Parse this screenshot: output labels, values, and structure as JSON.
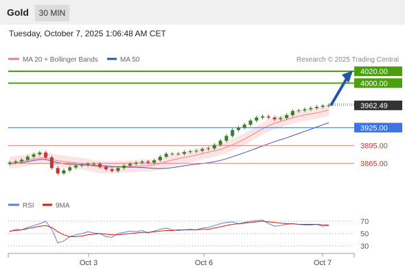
{
  "header": {
    "title": "Gold",
    "timeframe": "30 MIN"
  },
  "timestamp": "Tuesday, October 7, 2025 1:06:48 AM CET",
  "legend": {
    "ma20": "MA 20 + Bollinger Bands",
    "ma50": "MA 50",
    "research": "Research © 2025 Trading Central",
    "rsi": "RSI",
    "ma9": "9MA"
  },
  "colors": {
    "target_green": "#4aa011",
    "pivot_blue": "#3d74e0",
    "support_red": "#f08080",
    "support_text": "#c0392b",
    "price_box": "#333333",
    "arrow": "#2456a4",
    "candle_up": "#3a7d2a",
    "candle_down": "#c0392b",
    "band_fill": "#fde0e0",
    "ma20": "#f08080",
    "ma50": "#3f51b5",
    "rsi": "#5b7fd6",
    "rsi_ma": "#d11a1a"
  },
  "chart_data": [
    {
      "type": "candlestick",
      "x_tick_labels": [
        "Oct 3",
        "Oct 6",
        "Oct 7"
      ],
      "y_range": [
        3840,
        4030
      ],
      "levels": [
        {
          "label": "4020.00",
          "value": 4020.0,
          "kind": "resistance"
        },
        {
          "label": "4000.00",
          "value": 4000.0,
          "kind": "resistance"
        },
        {
          "label": "3962.49",
          "value": 3962.49,
          "kind": "last-price"
        },
        {
          "label": "3925.00",
          "value": 3925.0,
          "kind": "pivot"
        },
        {
          "label": "3895.00",
          "value": 3895.0,
          "kind": "support"
        },
        {
          "label": "3865.00",
          "value": 3865.0,
          "kind": "support"
        }
      ],
      "series": [
        {
          "name": "MA 20 + Bollinger Bands"
        },
        {
          "name": "MA 50"
        }
      ],
      "approx_close": [
        3866,
        3868,
        3871,
        3876,
        3880,
        3883,
        3875,
        3857,
        3848,
        3853,
        3858,
        3861,
        3862,
        3864,
        3864,
        3859,
        3855,
        3852,
        3857,
        3861,
        3864,
        3866,
        3868,
        3866,
        3870,
        3876,
        3881,
        3881,
        3881,
        3884,
        3885,
        3886,
        3889,
        3890,
        3896,
        3903,
        3911,
        3921,
        3925,
        3930,
        3937,
        3942,
        3944,
        3942,
        3939,
        3941,
        3946,
        3953,
        3954,
        3956,
        3958,
        3960,
        3962,
        3962.49
      ],
      "projection": {
        "to": 4020.0
      }
    },
    {
      "type": "line",
      "series": [
        {
          "name": "RSI"
        },
        {
          "name": "9MA"
        }
      ],
      "y_ticks": [
        70,
        50,
        30
      ],
      "y_range": [
        20,
        80
      ],
      "rsi_values": [
        53,
        57,
        56,
        60,
        63,
        66,
        70,
        57,
        35,
        38,
        45,
        48,
        50,
        53,
        51,
        50,
        45,
        44,
        50,
        52,
        54,
        53,
        55,
        51,
        54,
        57,
        59,
        56,
        55,
        56,
        57,
        56,
        59,
        60,
        63,
        66,
        68,
        69,
        66,
        68,
        70,
        71,
        72,
        66,
        62,
        63,
        65,
        66,
        65,
        64,
        64,
        65,
        62,
        63
      ],
      "rsi_ma_values": [
        54,
        55,
        56,
        58,
        60,
        62,
        63,
        60,
        53,
        48,
        45,
        45,
        46,
        48,
        49,
        50,
        49,
        48,
        48,
        49,
        50,
        51,
        52,
        52,
        53,
        54,
        55,
        55,
        56,
        56,
        56,
        56,
        57,
        57,
        59,
        61,
        63,
        65,
        66,
        67,
        68,
        69,
        70,
        69,
        68,
        67,
        66,
        66,
        65,
        65,
        65,
        65,
        64,
        64
      ]
    }
  ]
}
